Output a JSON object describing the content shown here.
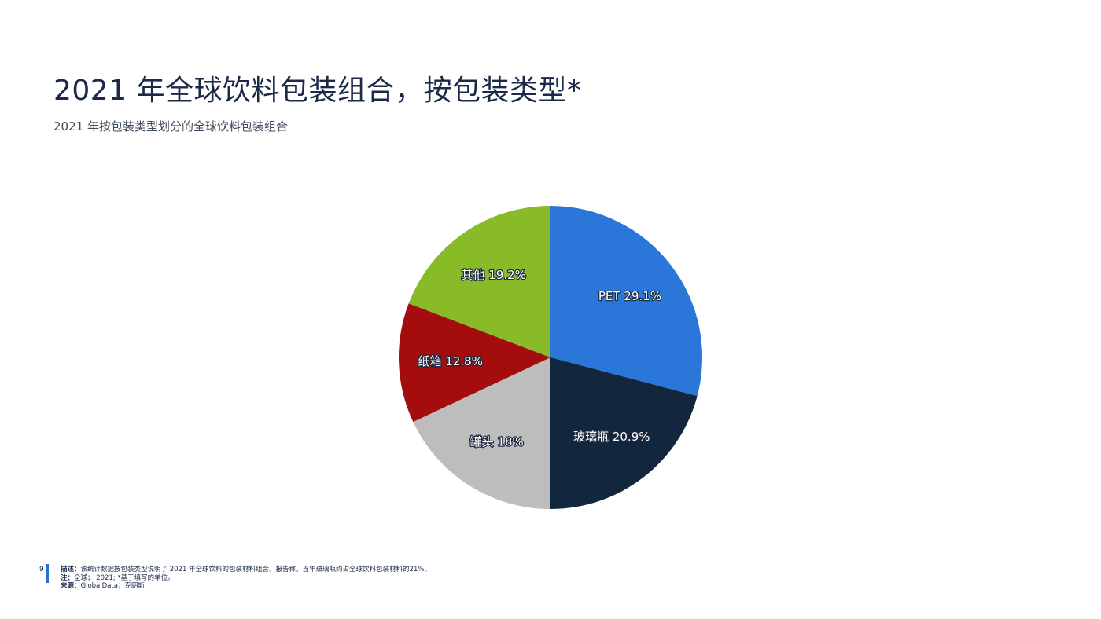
{
  "header": {
    "title": "2021 年全球饮料包装组合，按包装类型*",
    "subtitle": "2021 年按包装类型划分的全球饮料包装组合"
  },
  "chart_data": {
    "type": "pie",
    "title": "",
    "categories": [
      "PET",
      "玻璃瓶",
      "罐头",
      "纸箱",
      "其他"
    ],
    "values": [
      29.1,
      20.9,
      18,
      12.8,
      19.2
    ],
    "unit": "%",
    "labels": [
      "PET 29.1%",
      "玻璃瓶 20.9%",
      "罐头 18%",
      "纸箱 12.8%",
      "其他 19.2%"
    ],
    "colors": [
      "#2a77d9",
      "#12263d",
      "#bdbdbd",
      "#a30d0d",
      "#88bb27"
    ],
    "start": "12 o'clock",
    "direction": "clockwise"
  },
  "footer": {
    "page_number": "9",
    "description_label": "描述：",
    "description_text": "该统计数据按包装类型说明了 2021 年全球饮料的包装材料组合。报告称，当年玻璃瓶约占全球饮料包装材料的21%。",
    "note_label": "注：",
    "note_text": "全球；  2021; *基于填写的单位。",
    "source_label": "来源：",
    "source_text": "GlobalData；克朗斯"
  }
}
